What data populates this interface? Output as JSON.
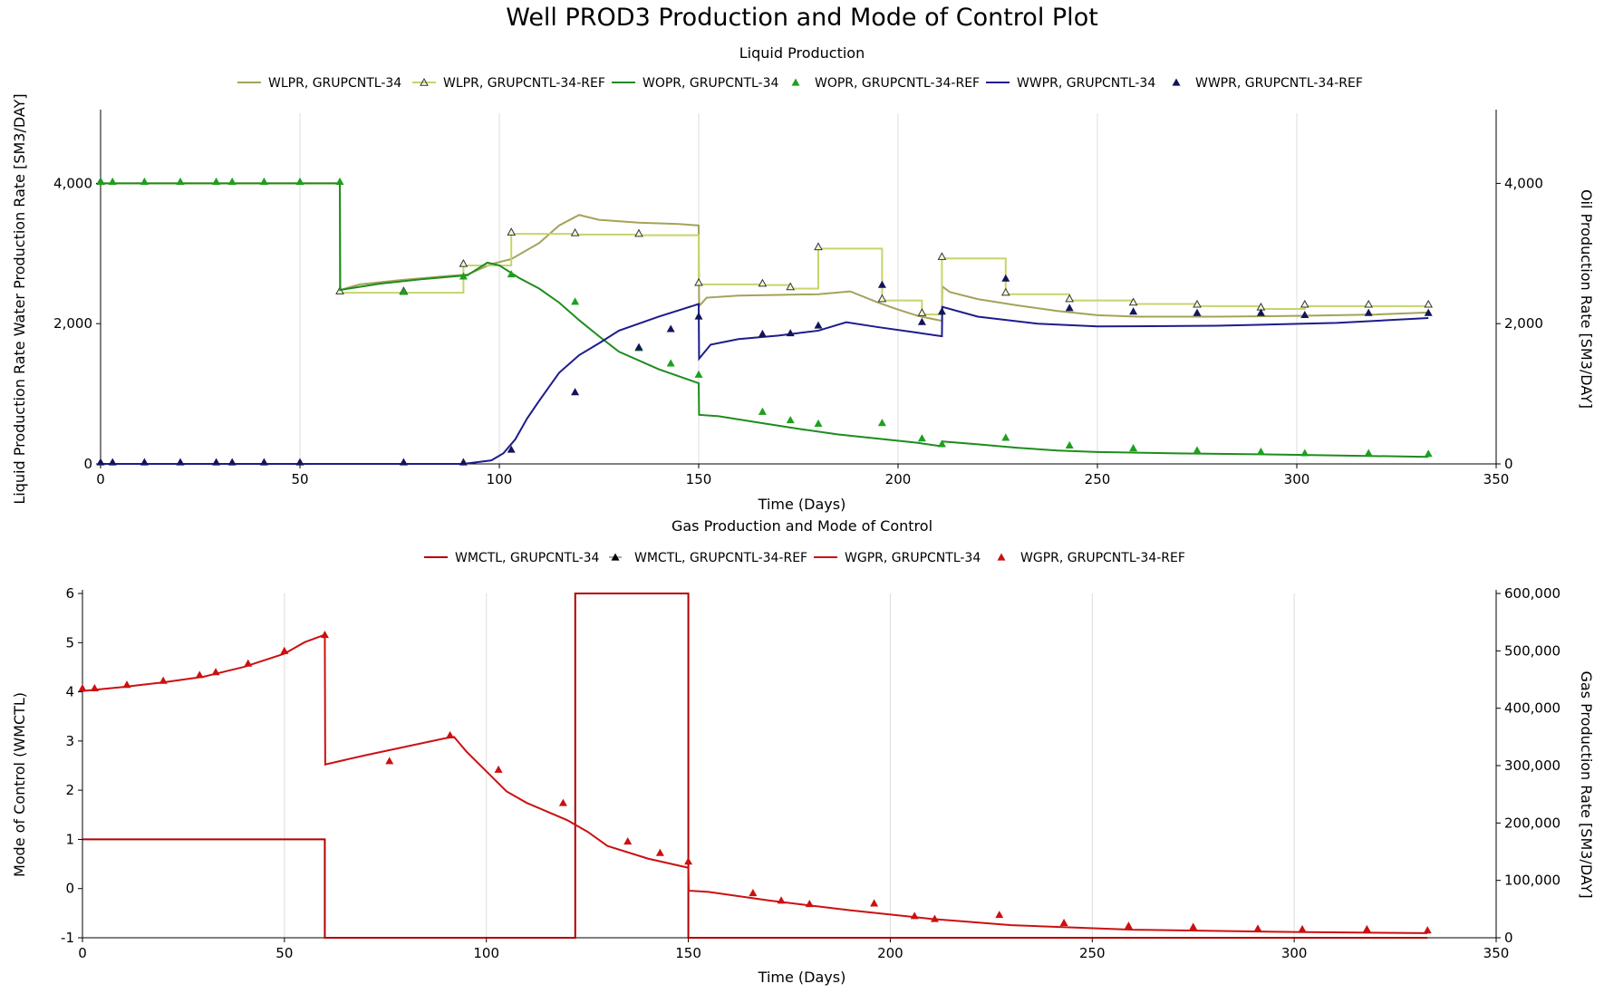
{
  "title": "Well PROD3 Production and Mode of Control Plot",
  "colors": {
    "wlpr": "#a3a35a",
    "wlpr_ref": "#c8d46a",
    "wopr": "#1e8c1e",
    "wopr_ref": "#1ea01e",
    "wwpr": "#1c1c8c",
    "wwpr_ref": "#14145a",
    "wmctl": "#b00000",
    "wmctl_ref": "#000000",
    "wgpr": "#cc1010",
    "wgpr_ref": "#cc1010",
    "grid": "#dcdcdc",
    "axis": "#000000"
  },
  "chart_data": [
    {
      "type": "line",
      "title": "Liquid Production",
      "xlabel": "Time (Days)",
      "ylabel": "Liquid Production Rate Water Production Rate [SM3/DAY]",
      "y2label": "Oil Production Rate [SM3/DAY]",
      "xlim": [
        0,
        350
      ],
      "ylim": [
        0,
        5000
      ],
      "y2lim": [
        0,
        5000
      ],
      "x_ticks": [
        0,
        50,
        100,
        150,
        200,
        250,
        300,
        350
      ],
      "x_tick_labels": [
        "0",
        "50",
        "100",
        "150",
        "200",
        "250",
        "300",
        "350"
      ],
      "y_ticks": [
        0,
        2000,
        4000
      ],
      "y_tick_labels": [
        "0",
        "2,000",
        "4,000"
      ],
      "y2_ticks": [
        0,
        2000,
        4000
      ],
      "y2_tick_labels": [
        "0",
        "2,000",
        "4,000"
      ],
      "grid": true,
      "legend_position": "top",
      "series": [
        {
          "name": "WLPR, GRUPCNTL-34",
          "style": "line",
          "color_key": "wlpr",
          "axis": "left",
          "x": [
            0,
            60,
            60.1,
            65,
            75,
            85,
            92,
            98,
            103,
            110,
            115,
            120,
            125,
            135,
            145,
            150,
            150.1,
            152,
            160,
            170,
            180,
            188,
            195,
            200,
            205,
            211,
            211.1,
            213,
            220,
            230,
            240,
            250,
            260,
            280,
            300,
            320,
            333
          ],
          "y": [
            4000,
            4000,
            2480,
            2560,
            2620,
            2670,
            2700,
            2850,
            2920,
            3150,
            3400,
            3550,
            3480,
            3440,
            3420,
            3400,
            2250,
            2370,
            2400,
            2410,
            2420,
            2460,
            2300,
            2200,
            2110,
            2040,
            2530,
            2450,
            2350,
            2260,
            2180,
            2120,
            2100,
            2100,
            2110,
            2130,
            2160
          ]
        },
        {
          "name": "WLPR, GRUPCNTL-34-REF",
          "style": "step",
          "color_key": "wlpr_ref",
          "axis": "left",
          "x": [
            0,
            60,
            76,
            91,
            103,
            119,
            135,
            150,
            166,
            173,
            180,
            196,
            206,
            211,
            227,
            243,
            259,
            275,
            291,
            302,
            318,
            333
          ],
          "y": [
            4000,
            2440,
            2440,
            2830,
            3280,
            3270,
            3260,
            2560,
            2550,
            2500,
            3070,
            2330,
            2130,
            2930,
            2420,
            2330,
            2280,
            2250,
            2210,
            2250,
            2250,
            2250
          ]
        },
        {
          "name": "WOPR, GRUPCNTL-34",
          "style": "line",
          "color_key": "wopr",
          "axis": "right",
          "x": [
            0,
            60,
            60.1,
            70,
            80,
            92,
            97,
            100,
            105,
            110,
            115,
            120,
            125,
            130,
            140,
            150,
            150.1,
            155,
            165,
            175,
            185,
            195,
            205,
            211,
            211.1,
            220,
            230,
            240,
            250,
            270,
            300,
            333
          ],
          "y": [
            4000,
            4000,
            2480,
            2570,
            2630,
            2690,
            2870,
            2830,
            2650,
            2500,
            2300,
            2050,
            1820,
            1600,
            1350,
            1150,
            700,
            680,
            590,
            500,
            420,
            360,
            300,
            250,
            320,
            280,
            230,
            190,
            170,
            150,
            130,
            100
          ]
        },
        {
          "name": "WOPR, GRUPCNTL-34-REF",
          "style": "markers",
          "color_key": "wopr_ref",
          "axis": "right",
          "x": [
            0,
            3,
            11,
            20,
            29,
            33,
            41,
            50,
            60,
            76,
            91,
            103,
            119,
            135,
            143,
            150,
            166,
            173,
            180,
            196,
            206,
            211,
            227,
            243,
            259,
            275,
            291,
            302,
            318,
            333
          ],
          "y": [
            4000,
            4000,
            4000,
            4000,
            4000,
            4000,
            4000,
            4000,
            4000,
            2430,
            2650,
            2680,
            2290,
            1630,
            1410,
            1250,
            720,
            600,
            550,
            560,
            340,
            260,
            350,
            240,
            200,
            170,
            150,
            130,
            130,
            120
          ]
        },
        {
          "name": "WWPR, GRUPCNTL-34",
          "style": "line",
          "color_key": "wwpr",
          "axis": "left",
          "x": [
            0,
            91,
            98,
            101,
            104,
            107,
            110,
            115,
            120,
            125,
            130,
            140,
            150,
            150.1,
            153,
            160,
            170,
            180,
            187,
            195,
            205,
            211,
            211.1,
            220,
            235,
            250,
            280,
            310,
            333
          ],
          "y": [
            0,
            0,
            50,
            150,
            350,
            650,
            900,
            1300,
            1550,
            1720,
            1900,
            2100,
            2280,
            1500,
            1700,
            1780,
            1830,
            1900,
            2020,
            1950,
            1870,
            1820,
            2240,
            2100,
            2000,
            1960,
            1970,
            2010,
            2080
          ]
        },
        {
          "name": "WWPR, GRUPCNTL-34-REF",
          "style": "markers",
          "color_key": "wwpr_ref",
          "axis": "left",
          "x": [
            0,
            3,
            11,
            20,
            29,
            33,
            41,
            50,
            76,
            91,
            103,
            119,
            135,
            143,
            150,
            166,
            173,
            180,
            196,
            206,
            211,
            227,
            243,
            259,
            275,
            291,
            302,
            318,
            333
          ],
          "y": [
            0,
            0,
            0,
            0,
            0,
            0,
            0,
            0,
            0,
            0,
            180,
            1000,
            1640,
            1900,
            2080,
            1830,
            1840,
            1950,
            2530,
            2000,
            2150,
            2620,
            2200,
            2150,
            2130,
            2130,
            2100,
            2130,
            2130
          ]
        }
      ]
    },
    {
      "type": "line",
      "title": "Gas Production and Mode of Control",
      "xlabel": "Time (Days)",
      "ylabel": "Mode of Control (WMCTL)",
      "y2label": "Gas Production Rate [SM3/DAY]",
      "xlim": [
        0,
        350
      ],
      "ylim": [
        -1,
        6
      ],
      "y2lim": [
        0,
        600000
      ],
      "x_ticks": [
        0,
        50,
        100,
        150,
        200,
        250,
        300,
        350
      ],
      "x_tick_labels": [
        "0",
        "50",
        "100",
        "150",
        "200",
        "250",
        "300",
        "350"
      ],
      "y_ticks": [
        -1,
        0,
        1,
        2,
        3,
        4,
        5,
        6
      ],
      "y_tick_labels": [
        "-1",
        "0",
        "1",
        "2",
        "3",
        "4",
        "5",
        "6"
      ],
      "y2_ticks": [
        0,
        100000,
        200000,
        300000,
        400000,
        500000,
        600000
      ],
      "y2_tick_labels": [
        "0",
        "100,000",
        "200,000",
        "300,000",
        "400,000",
        "500,000",
        "600,000"
      ],
      "grid": true,
      "legend_position": "top",
      "series": [
        {
          "name": "WMCTL, GRUPCNTL-34",
          "style": "step",
          "color_key": "wmctl",
          "axis": "left",
          "x": [
            0,
            60,
            122,
            150,
            333
          ],
          "y": [
            1,
            -1,
            6,
            -1,
            -1
          ]
        },
        {
          "name": "WMCTL, GRUPCNTL-34-REF",
          "style": "none",
          "color_key": "wmctl_ref",
          "axis": "left",
          "x": [],
          "y": []
        },
        {
          "name": "WGPR, GRUPCNTL-34",
          "style": "line",
          "color_key": "wgpr",
          "axis": "right",
          "x": [
            0,
            10,
            20,
            30,
            40,
            50,
            55,
            60,
            60.1,
            70,
            80,
            90,
            92,
            95,
            100,
            105,
            110,
            115,
            120,
            125,
            130,
            140,
            150,
            150.1,
            155,
            170,
            190,
            210,
            230,
            260,
            300,
            333
          ],
          "y": [
            430000,
            437000,
            445000,
            455000,
            472000,
            495000,
            515000,
            528000,
            302000,
            318000,
            333000,
            348000,
            350000,
            325000,
            290000,
            255000,
            235000,
            220000,
            205000,
            185000,
            160000,
            138000,
            122000,
            82000,
            80000,
            65000,
            48000,
            33000,
            22000,
            14000,
            10000,
            8000
          ]
        },
        {
          "name": "WGPR, GRUPCNTL-34-REF",
          "style": "markers",
          "color_key": "wgpr_ref",
          "axis": "right",
          "x": [
            0,
            3,
            11,
            20,
            29,
            33,
            41,
            50,
            60,
            76,
            91,
            103,
            119,
            135,
            143,
            150,
            166,
            173,
            180,
            196,
            206,
            211,
            227,
            243,
            259,
            275,
            291,
            302,
            318,
            333
          ],
          "y": [
            432000,
            432000,
            438000,
            445000,
            455000,
            460000,
            475000,
            497000,
            525000,
            305000,
            350000,
            290000,
            232000,
            165000,
            145000,
            130000,
            75000,
            62000,
            56000,
            57000,
            35000,
            30000,
            37000,
            23000,
            18000,
            16000,
            13000,
            12000,
            12000,
            10000
          ]
        }
      ]
    }
  ]
}
